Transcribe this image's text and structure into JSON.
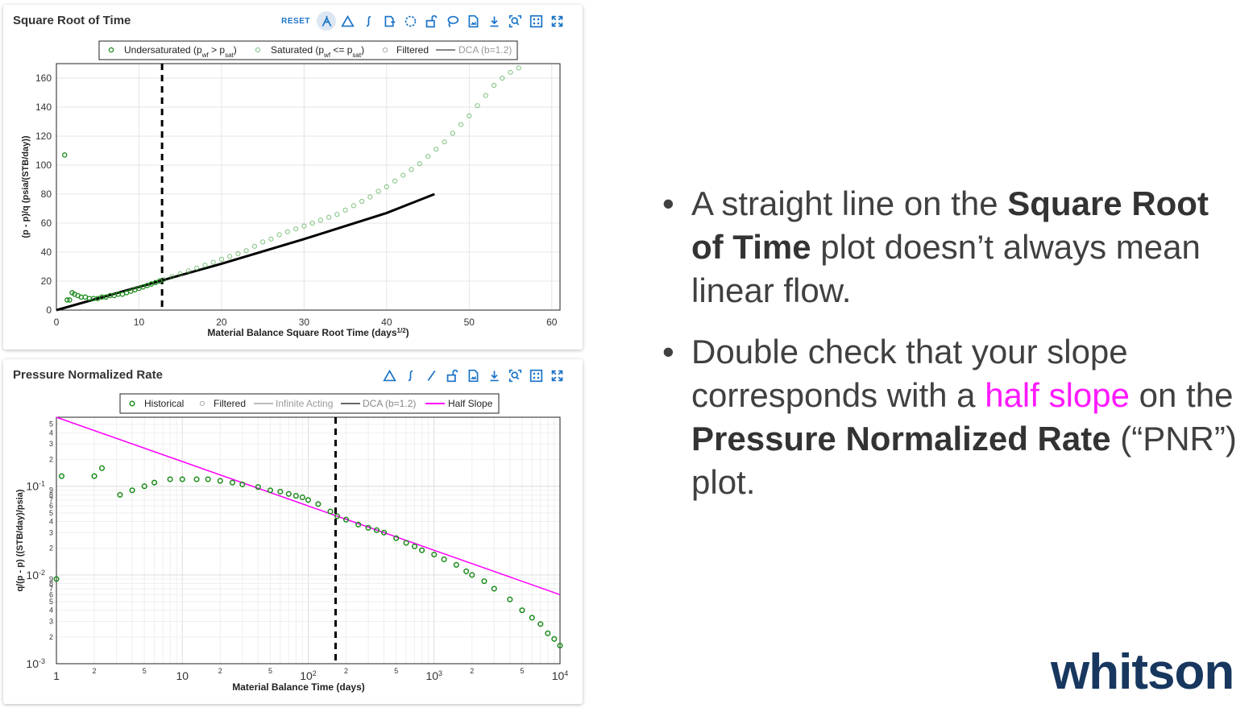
{
  "charts": [
    {
      "title": "Square Root of Time",
      "toolbar": {
        "reset_label": "RESET"
      },
      "legend": [
        "Undersaturated (p",
        "Saturated (p",
        "Filtered",
        "DCA (b=1.2)"
      ],
      "xlabel": "Material Balance Square Root Time (days",
      "xlabel_sup": "1/2",
      "ylabel": "(p - p)/q (psia/(STB/day))"
    },
    {
      "title": "Pressure Normalized Rate",
      "legend": [
        "Historical",
        "Filtered",
        "Infinite Acting",
        "DCA (b=1.2)",
        "Half Slope"
      ],
      "xlabel": "Material Balance Time (days)",
      "ylabel": "q/(p - p) ((STB/day)/psia)"
    }
  ],
  "chart_data": [
    {
      "type": "scatter",
      "title": "Square Root of Time",
      "xlabel": "Material Balance Square Root Time (days^1/2)",
      "ylabel": "(pi - pwf)/qo (psia/(STB/day))",
      "xlim": [
        0,
        61
      ],
      "ylim": [
        0,
        170
      ],
      "xticks": [
        0,
        10,
        20,
        30,
        40,
        50,
        60
      ],
      "yticks": [
        0,
        20,
        40,
        60,
        80,
        100,
        120,
        140,
        160
      ],
      "grid": true,
      "legend_position": "top",
      "vline_x": 12.8,
      "series": [
        {
          "name": "Undersaturated (pwf > psat)",
          "color": "#1a8a1a",
          "points": [
            [
              1,
              107
            ],
            [
              1.3,
              7
            ],
            [
              1.6,
              7
            ],
            [
              1.9,
              12
            ],
            [
              2.2,
              11
            ],
            [
              2.6,
              10
            ],
            [
              3,
              9
            ],
            [
              3.5,
              9
            ],
            [
              4,
              8
            ],
            [
              4.5,
              8
            ],
            [
              5,
              8
            ],
            [
              5.5,
              9
            ],
            [
              6,
              9
            ],
            [
              6.5,
              10
            ],
            [
              7,
              10
            ],
            [
              7.5,
              11
            ],
            [
              8,
              11
            ],
            [
              8.5,
              12
            ],
            [
              9,
              13
            ],
            [
              9.5,
              14
            ],
            [
              10,
              15
            ],
            [
              10.5,
              16
            ],
            [
              11,
              17
            ],
            [
              11.5,
              18
            ],
            [
              12,
              19
            ],
            [
              12.5,
              20
            ]
          ]
        },
        {
          "name": "Saturated (pwf <= psat)",
          "color": "#4aa84a",
          "points": [
            [
              13,
              21
            ],
            [
              14,
              23
            ],
            [
              15,
              25
            ],
            [
              16,
              27
            ],
            [
              17,
              29
            ],
            [
              18,
              31
            ],
            [
              19,
              33
            ],
            [
              20,
              35
            ],
            [
              21,
              37
            ],
            [
              22,
              39
            ],
            [
              23,
              41
            ],
            [
              24,
              44
            ],
            [
              25,
              47
            ],
            [
              26,
              49
            ],
            [
              27,
              52
            ],
            [
              28,
              54
            ],
            [
              29,
              56
            ],
            [
              30,
              58
            ],
            [
              31,
              60
            ],
            [
              32,
              62
            ],
            [
              33,
              64
            ],
            [
              34,
              66
            ],
            [
              35,
              69
            ],
            [
              36,
              72
            ],
            [
              37,
              75
            ],
            [
              38,
              78
            ],
            [
              39,
              82
            ],
            [
              40,
              85
            ],
            [
              41,
              89
            ],
            [
              42,
              93
            ],
            [
              43,
              97
            ],
            [
              44,
              101
            ],
            [
              45,
              106
            ],
            [
              46,
              111
            ],
            [
              47,
              116
            ],
            [
              48,
              122
            ],
            [
              49,
              128
            ],
            [
              50,
              134
            ],
            [
              51,
              141
            ],
            [
              52,
              148
            ],
            [
              53,
              155
            ],
            [
              54,
              160
            ],
            [
              55,
              164
            ],
            [
              56,
              167
            ]
          ]
        },
        {
          "name": "DCA (b=1.2)",
          "type": "line",
          "color": "#000000",
          "points": [
            [
              0,
              0
            ],
            [
              10,
              16
            ],
            [
              20,
              32
            ],
            [
              30,
              49
            ],
            [
              40,
              67
            ],
            [
              45.8,
              80
            ]
          ]
        }
      ]
    },
    {
      "type": "scatter",
      "title": "Pressure Normalized Rate",
      "xlabel": "Material Balance Time (days)",
      "ylabel": "qo/(pi - pwf) ((STB/day)/psia)",
      "xscale": "log",
      "yscale": "log",
      "xlim": [
        1,
        10000
      ],
      "ylim": [
        0.001,
        0.6
      ],
      "xtick_labels": [
        "1",
        "10",
        "10^2",
        "10^3",
        "10^4"
      ],
      "ytick_labels": [
        "10^-3",
        "10^-2",
        "10^-1"
      ],
      "grid": true,
      "legend_position": "top",
      "vline_x": 165,
      "series": [
        {
          "name": "Historical",
          "color": "#1a8a1a",
          "points": [
            [
              1,
              0.009
            ],
            [
              1.1,
              0.13
            ],
            [
              2,
              0.13
            ],
            [
              2.3,
              0.16
            ],
            [
              3.2,
              0.08
            ],
            [
              4,
              0.09
            ],
            [
              5,
              0.1
            ],
            [
              6,
              0.11
            ],
            [
              8,
              0.12
            ],
            [
              10,
              0.12
            ],
            [
              13,
              0.12
            ],
            [
              16,
              0.12
            ],
            [
              20,
              0.115
            ],
            [
              25,
              0.11
            ],
            [
              30,
              0.105
            ],
            [
              40,
              0.098
            ],
            [
              50,
              0.09
            ],
            [
              60,
              0.087
            ],
            [
              70,
              0.082
            ],
            [
              80,
              0.078
            ],
            [
              90,
              0.075
            ],
            [
              100,
              0.07
            ],
            [
              120,
              0.063
            ],
            [
              150,
              0.052
            ],
            [
              170,
              0.046
            ],
            [
              200,
              0.042
            ],
            [
              250,
              0.037
            ],
            [
              300,
              0.034
            ],
            [
              350,
              0.032
            ],
            [
              400,
              0.03
            ],
            [
              500,
              0.026
            ],
            [
              600,
              0.023
            ],
            [
              700,
              0.021
            ],
            [
              800,
              0.019
            ],
            [
              1000,
              0.017
            ],
            [
              1200,
              0.015
            ],
            [
              1500,
              0.013
            ],
            [
              1800,
              0.011
            ],
            [
              2000,
              0.01
            ],
            [
              2500,
              0.0085
            ],
            [
              3000,
              0.007
            ],
            [
              4000,
              0.0053
            ],
            [
              5000,
              0.004
            ],
            [
              6000,
              0.0033
            ],
            [
              7000,
              0.0028
            ],
            [
              8000,
              0.0022
            ],
            [
              9000,
              0.0019
            ],
            [
              10000,
              0.0016
            ]
          ]
        },
        {
          "name": "Half Slope",
          "type": "line",
          "color": "#ff00ff",
          "points": [
            [
              1,
              0.6
            ],
            [
              10,
              0.19
            ],
            [
              100,
              0.06
            ],
            [
              1000,
              0.019
            ],
            [
              10000,
              0.006
            ]
          ]
        }
      ]
    }
  ],
  "bullets": {
    "b1_pre": "A straight line on the ",
    "b1_bold": "Square Root of Time",
    "b1_post": " plot doesn’t always mean linear flow.",
    "b2_pre": "Double check that your slope corresponds with a ",
    "b2_magenta": "half slope",
    "b2_mid": " on the ",
    "b2_bold1": "Pressure Normalized Rate",
    "b2_post": " (“PNR”) plot."
  },
  "logo": "whitson",
  "colors": {
    "green": "#1a8a1a",
    "light_green": "#4aa84a",
    "magenta": "#ff19ff",
    "brand": "#17375e",
    "toolbar_icon": "#1a73c8"
  }
}
